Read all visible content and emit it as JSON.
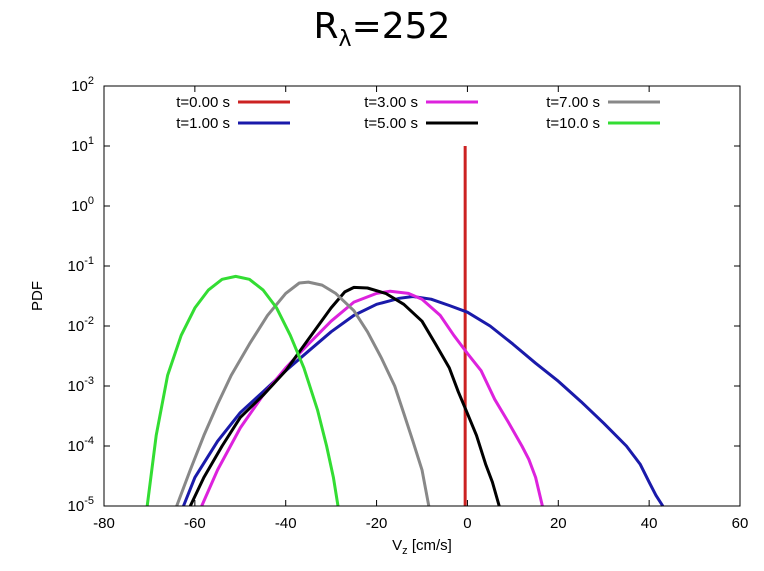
{
  "chart_data": {
    "type": "line",
    "title": {
      "base": "R",
      "sub": "λ",
      "rest": "=252"
    },
    "xlabel": {
      "base": "V",
      "sub": "z",
      "rest": " [cm/s]"
    },
    "ylabel": "PDF",
    "xlim": [
      -80,
      60
    ],
    "ylim_log10": [
      -5,
      2
    ],
    "y_scale": "log",
    "x_ticks": [
      "-80",
      "-60",
      "-40",
      "-20",
      "0",
      "20",
      "40",
      "60"
    ],
    "y_ticks": [
      {
        "base": "10",
        "exp": "-5"
      },
      {
        "base": "10",
        "exp": "-4"
      },
      {
        "base": "10",
        "exp": "-3"
      },
      {
        "base": "10",
        "exp": "-2"
      },
      {
        "base": "10",
        "exp": "-1"
      },
      {
        "base": "10",
        "exp": "0"
      },
      {
        "base": "10",
        "exp": "1"
      },
      {
        "base": "10",
        "exp": "2"
      }
    ],
    "legend_placement": "top",
    "series": [
      {
        "name": "t=0.00 s",
        "color": "#cc2222",
        "kind": "vline",
        "x": -0.5,
        "y_top": 10
      },
      {
        "name": "t=1.00 s",
        "color": "#1a1aaa",
        "points": [
          [
            -62.5,
            1e-05
          ],
          [
            -60,
            3e-05
          ],
          [
            -55,
            0.00012
          ],
          [
            -50,
            0.00036
          ],
          [
            -45,
            0.0008
          ],
          [
            -40,
            0.0018
          ],
          [
            -35,
            0.0038
          ],
          [
            -30,
            0.008
          ],
          [
            -25,
            0.015
          ],
          [
            -20,
            0.023
          ],
          [
            -15,
            0.029
          ],
          [
            -12,
            0.031
          ],
          [
            -8,
            0.028
          ],
          [
            -4,
            0.022
          ],
          [
            0,
            0.017
          ],
          [
            5,
            0.01
          ],
          [
            10,
            0.005
          ],
          [
            15,
            0.0024
          ],
          [
            20,
            0.0012
          ],
          [
            25,
            0.00055
          ],
          [
            30,
            0.00024
          ],
          [
            35,
            0.0001
          ],
          [
            38,
            5e-05
          ],
          [
            40,
            2.5e-05
          ],
          [
            41.5,
            1.5e-05
          ],
          [
            43,
            1e-05
          ]
        ]
      },
      {
        "name": "t=3.00 s",
        "color": "#dd22dd",
        "points": [
          [
            -58.5,
            1e-05
          ],
          [
            -55,
            4e-05
          ],
          [
            -50,
            0.0002
          ],
          [
            -45,
            0.0007
          ],
          [
            -40,
            0.002
          ],
          [
            -35,
            0.005
          ],
          [
            -30,
            0.012
          ],
          [
            -25,
            0.025
          ],
          [
            -20,
            0.035
          ],
          [
            -17,
            0.038
          ],
          [
            -13,
            0.035
          ],
          [
            -10,
            0.028
          ],
          [
            -6,
            0.015
          ],
          [
            -3,
            0.007
          ],
          [
            0,
            0.0035
          ],
          [
            3,
            0.0018
          ],
          [
            6,
            0.0006
          ],
          [
            9,
            0.00025
          ],
          [
            12,
            0.0001
          ],
          [
            13.5,
            6e-05
          ],
          [
            15,
            3e-05
          ],
          [
            16.5,
            1e-05
          ]
        ]
      },
      {
        "name": "t=5.00 s",
        "color": "#000000",
        "points": [
          [
            -61,
            1e-05
          ],
          [
            -58,
            3e-05
          ],
          [
            -54,
            0.0001
          ],
          [
            -50,
            0.0003
          ],
          [
            -45,
            0.0007
          ],
          [
            -40,
            0.0018
          ],
          [
            -35,
            0.006
          ],
          [
            -30,
            0.02
          ],
          [
            -27,
            0.037
          ],
          [
            -25,
            0.044
          ],
          [
            -22,
            0.043
          ],
          [
            -18,
            0.035
          ],
          [
            -14,
            0.023
          ],
          [
            -10,
            0.012
          ],
          [
            -7,
            0.005
          ],
          [
            -4,
            0.002
          ],
          [
            -2,
            0.0008
          ],
          [
            0,
            0.00035
          ],
          [
            2,
            0.00015
          ],
          [
            4,
            5e-05
          ],
          [
            5.5,
            2.5e-05
          ],
          [
            7,
            1e-05
          ]
        ]
      },
      {
        "name": "t=7.00 s",
        "color": "#888888",
        "points": [
          [
            -64,
            1e-05
          ],
          [
            -61,
            4e-05
          ],
          [
            -58,
            0.00015
          ],
          [
            -55,
            0.0005
          ],
          [
            -52,
            0.0015
          ],
          [
            -48,
            0.005
          ],
          [
            -44,
            0.015
          ],
          [
            -40,
            0.035
          ],
          [
            -37,
            0.052
          ],
          [
            -35,
            0.054
          ],
          [
            -32,
            0.048
          ],
          [
            -29,
            0.035
          ],
          [
            -25,
            0.018
          ],
          [
            -22,
            0.008
          ],
          [
            -19,
            0.003
          ],
          [
            -16,
            0.001
          ],
          [
            -14,
            0.00035
          ],
          [
            -12,
            0.00012
          ],
          [
            -10,
            4e-05
          ],
          [
            -8.5,
            1e-05
          ]
        ]
      },
      {
        "name": "t=10.0 s",
        "color": "#33dd33",
        "points": [
          [
            -70.5,
            1e-05
          ],
          [
            -68.5,
            0.00015
          ],
          [
            -66,
            0.0015
          ],
          [
            -63,
            0.007
          ],
          [
            -60,
            0.02
          ],
          [
            -57,
            0.04
          ],
          [
            -54,
            0.06
          ],
          [
            -51,
            0.067
          ],
          [
            -48,
            0.06
          ],
          [
            -45,
            0.04
          ],
          [
            -42,
            0.02
          ],
          [
            -39,
            0.007
          ],
          [
            -36,
            0.002
          ],
          [
            -33,
            0.0004
          ],
          [
            -31,
            0.0001
          ],
          [
            -29.5,
            3e-05
          ],
          [
            -28.5,
            1e-05
          ]
        ]
      }
    ]
  }
}
